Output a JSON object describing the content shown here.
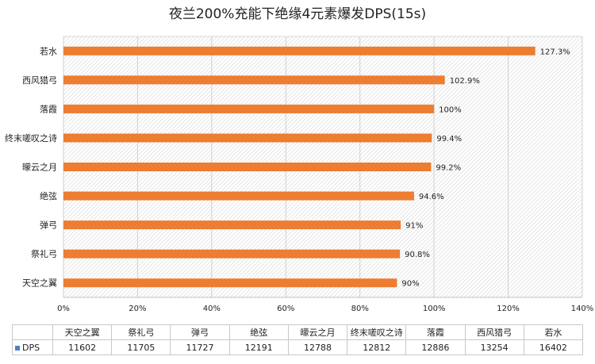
{
  "chart_data": {
    "type": "bar",
    "orientation": "horizontal",
    "title": "夜兰200%充能下绝缘4元素爆发DPS(15s)",
    "categories": [
      "若水",
      "西风猎弓",
      "落霞",
      "终末嗟叹之诗",
      "曚云之月",
      "绝弦",
      "弹弓",
      "祭礼弓",
      "天空之翼"
    ],
    "series": [
      {
        "values": [
          127.3,
          102.9,
          100,
          99.4,
          99.2,
          94.6,
          91,
          90.8,
          90
        ],
        "value_labels": [
          "127.3%",
          "102.9%",
          "100%",
          "99.4%",
          "99.2%",
          "94.6%",
          "91%",
          "90.8%",
          "90%"
        ],
        "unit": "%"
      }
    ],
    "x_range": [
      0,
      140
    ],
    "x_ticks": [
      0,
      20,
      40,
      60,
      80,
      100,
      120,
      140
    ],
    "x_tick_labels": [
      "0%",
      "20%",
      "40%",
      "60%",
      "80%",
      "100%",
      "120%",
      "140%"
    ],
    "grid": true,
    "bar_color": "#ed7d31",
    "legend": "none",
    "data_table": {
      "columns": [
        "天空之翼",
        "祭礼弓",
        "弹弓",
        "绝弦",
        "曚云之月",
        "终末嗟叹之诗",
        "落霞",
        "西风猎弓",
        "若水"
      ],
      "rows": [
        {
          "label": "DPS",
          "legend_color": "#4f81bd",
          "values": [
            "11602",
            "11705",
            "11727",
            "12191",
            "12788",
            "12812",
            "12886",
            "13254",
            "16402"
          ]
        }
      ]
    }
  }
}
